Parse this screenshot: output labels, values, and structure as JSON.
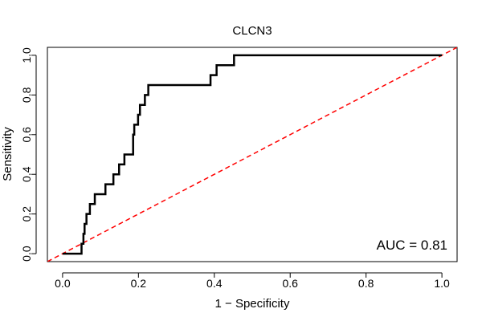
{
  "chart_data": {
    "type": "line",
    "title": "CLCN3",
    "xlabel": "1 − Specificity",
    "ylabel": "Sensitivity",
    "xlim": [
      -0.04,
      1.04
    ],
    "ylim": [
      -0.04,
      1.04
    ],
    "xticks": [
      0.0,
      0.2,
      0.4,
      0.6,
      0.8,
      1.0
    ],
    "xtick_labels": [
      "0.0",
      "0.2",
      "0.4",
      "0.6",
      "0.8",
      "1.0"
    ],
    "yticks": [
      0.0,
      0.2,
      0.4,
      0.6,
      0.8,
      1.0
    ],
    "ytick_labels": [
      "0.0",
      "0.2",
      "0.4",
      "0.6",
      "0.8",
      "1.0"
    ],
    "grid": false,
    "series": [
      {
        "name": "ROC curve",
        "color": "#000000",
        "style": "step",
        "x": [
          0.0,
          0.05,
          0.05,
          0.055,
          0.055,
          0.058,
          0.058,
          0.063,
          0.063,
          0.072,
          0.072,
          0.085,
          0.085,
          0.113,
          0.113,
          0.134,
          0.134,
          0.149,
          0.149,
          0.163,
          0.163,
          0.186,
          0.186,
          0.189,
          0.189,
          0.199,
          0.199,
          0.204,
          0.204,
          0.217,
          0.217,
          0.226,
          0.226,
          0.285,
          0.285,
          0.39,
          0.39,
          0.406,
          0.406,
          0.452,
          0.452,
          1.0
        ],
        "y": [
          0.0,
          0.0,
          0.05,
          0.05,
          0.1,
          0.1,
          0.15,
          0.15,
          0.2,
          0.2,
          0.25,
          0.25,
          0.3,
          0.3,
          0.35,
          0.35,
          0.4,
          0.4,
          0.45,
          0.45,
          0.5,
          0.5,
          0.6,
          0.6,
          0.65,
          0.65,
          0.7,
          0.7,
          0.75,
          0.75,
          0.8,
          0.8,
          0.85,
          0.85,
          0.85,
          0.85,
          0.9,
          0.9,
          0.95,
          0.95,
          1.0,
          1.0
        ]
      },
      {
        "name": "Reference line",
        "color": "#ff0000",
        "style": "dashed",
        "x": [
          -0.04,
          1.04
        ],
        "y": [
          -0.04,
          1.04
        ]
      }
    ],
    "annotations": [
      {
        "text": "AUC = 0.81",
        "x": 0.81,
        "y": 0.03
      }
    ]
  }
}
